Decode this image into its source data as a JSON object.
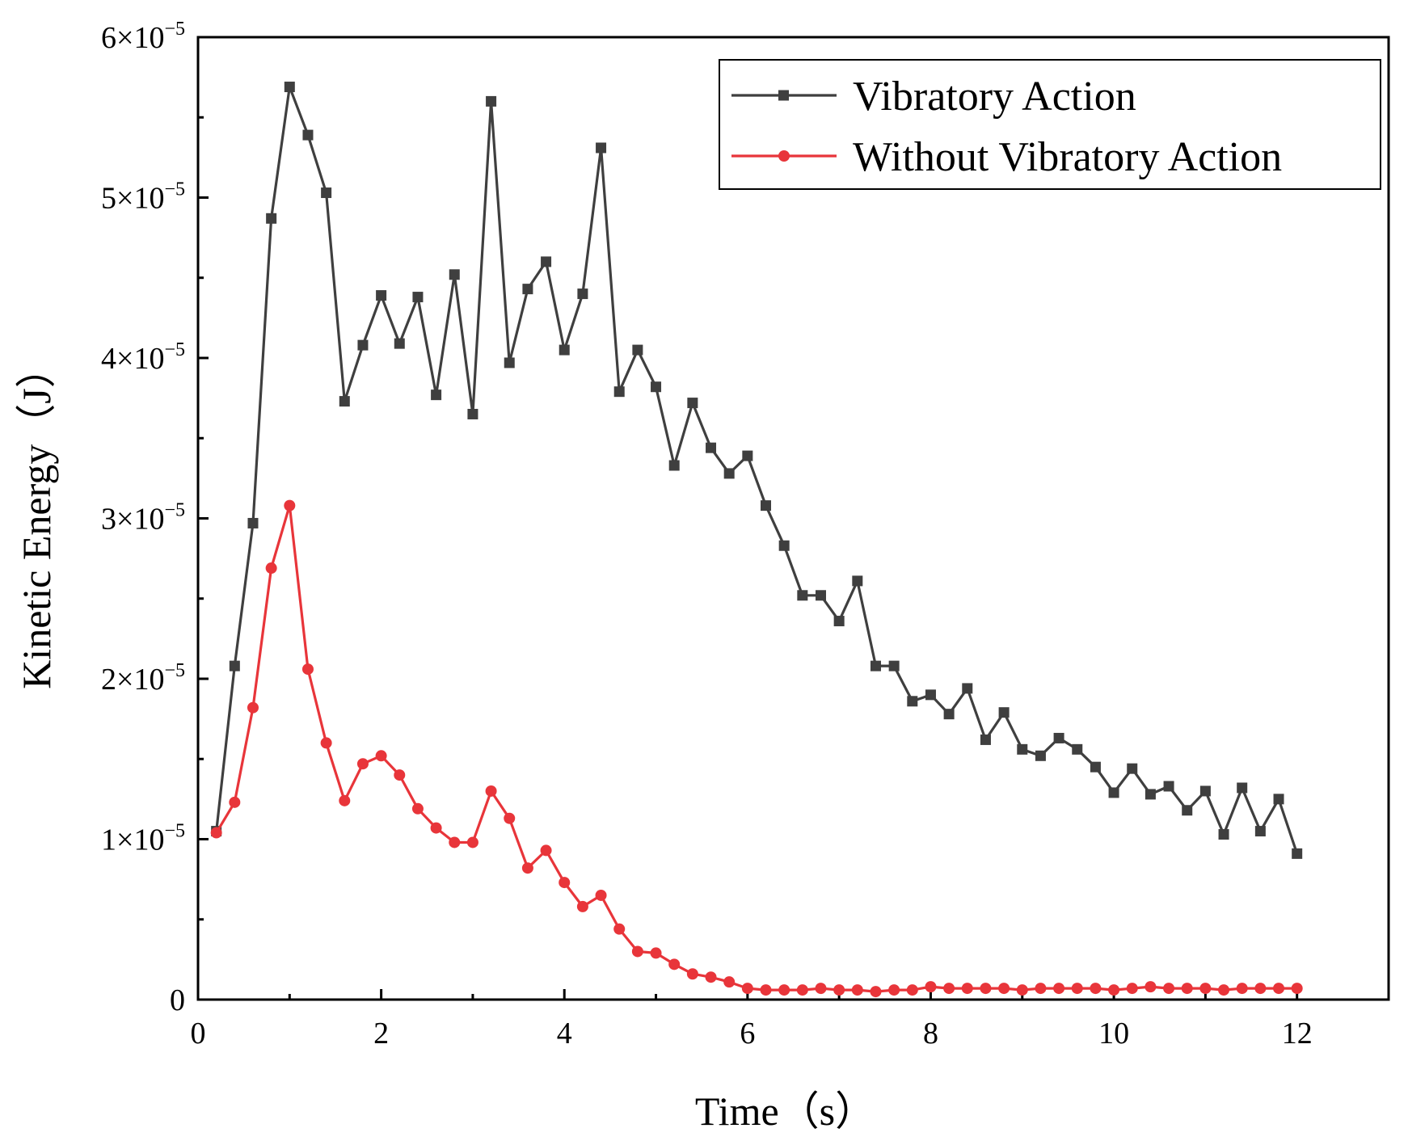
{
  "chart_data": {
    "type": "line",
    "title": "",
    "xlabel": "Time（s）",
    "ylabel": "Kinetic Energy（J）",
    "xlim": [
      0,
      13
    ],
    "ylim": [
      0,
      6e-05
    ],
    "xticks": [
      0,
      2,
      4,
      6,
      8,
      10,
      12
    ],
    "xtick_labels": [
      "0",
      "2",
      "4",
      "6",
      "8",
      "10",
      "12"
    ],
    "yticks": [
      0,
      1e-05,
      2e-05,
      3e-05,
      4e-05,
      5e-05,
      6e-05
    ],
    "ytick_labels": [
      {
        "mant": "0",
        "exp": ""
      },
      {
        "mant": "1×10",
        "exp": "−5"
      },
      {
        "mant": "2×10",
        "exp": "−5"
      },
      {
        "mant": "3×10",
        "exp": "−5"
      },
      {
        "mant": "4×10",
        "exp": "−5"
      },
      {
        "mant": "5×10",
        "exp": "−5"
      },
      {
        "mant": "6×10",
        "exp": "−5"
      }
    ],
    "legend_position": "top-right",
    "grid": false,
    "x": [
      0.2,
      0.4,
      0.6,
      0.8,
      1.0,
      1.2,
      1.4,
      1.6,
      1.8,
      2.0,
      2.2,
      2.4,
      2.6,
      2.8,
      3.0,
      3.2,
      3.4,
      3.6,
      3.8,
      4.0,
      4.2,
      4.4,
      4.6,
      4.8,
      5.0,
      5.2,
      5.4,
      5.6,
      5.8,
      6.0,
      6.2,
      6.4,
      6.6,
      6.8,
      7.0,
      7.2,
      7.4,
      7.6,
      7.8,
      8.0,
      8.2,
      8.4,
      8.6,
      8.8,
      9.0,
      9.2,
      9.4,
      9.6,
      9.8,
      10.0,
      10.2,
      10.4,
      10.6,
      10.8,
      11.0,
      11.2,
      11.4,
      11.6,
      11.8,
      12.0
    ],
    "series": [
      {
        "name": "Vibratory Action",
        "color": "#3f3f3f",
        "marker": "square",
        "values": [
          1.05e-05,
          2.08e-05,
          2.97e-05,
          4.87e-05,
          5.69e-05,
          5.39e-05,
          5.03e-05,
          3.73e-05,
          4.08e-05,
          4.39e-05,
          4.09e-05,
          4.38e-05,
          3.77e-05,
          4.52e-05,
          3.65e-05,
          5.6e-05,
          3.97e-05,
          4.43e-05,
          4.6e-05,
          4.05e-05,
          4.4e-05,
          5.31e-05,
          3.79e-05,
          4.05e-05,
          3.82e-05,
          3.33e-05,
          3.72e-05,
          3.44e-05,
          3.28e-05,
          3.39e-05,
          3.08e-05,
          2.83e-05,
          2.52e-05,
          2.52e-05,
          2.36e-05,
          2.61e-05,
          2.08e-05,
          2.08e-05,
          1.86e-05,
          1.9e-05,
          1.78e-05,
          1.94e-05,
          1.62e-05,
          1.79e-05,
          1.56e-05,
          1.52e-05,
          1.63e-05,
          1.56e-05,
          1.45e-05,
          1.29e-05,
          1.44e-05,
          1.28e-05,
          1.33e-05,
          1.18e-05,
          1.3e-05,
          1.03e-05,
          1.32e-05,
          1.05e-05,
          1.25e-05,
          9.1e-06
        ]
      },
      {
        "name": "Without Vibratory Action",
        "color": "#e8353a",
        "marker": "circle",
        "values": [
          1.04e-05,
          1.23e-05,
          1.82e-05,
          2.69e-05,
          3.08e-05,
          2.06e-05,
          1.6e-05,
          1.24e-05,
          1.47e-05,
          1.52e-05,
          1.4e-05,
          1.19e-05,
          1.07e-05,
          9.8e-06,
          9.8e-06,
          1.3e-05,
          1.13e-05,
          8.2e-06,
          9.3e-06,
          7.3e-06,
          5.8e-06,
          6.5e-06,
          4.4e-06,
          3e-06,
          2.9e-06,
          2.2e-06,
          1.6e-06,
          1.4e-06,
          1.1e-06,
          7e-07,
          6e-07,
          6e-07,
          6e-07,
          7e-07,
          6e-07,
          6e-07,
          5e-07,
          6e-07,
          6e-07,
          8e-07,
          7e-07,
          7e-07,
          7e-07,
          7e-07,
          6e-07,
          7e-07,
          7e-07,
          7e-07,
          7e-07,
          6e-07,
          7e-07,
          8e-07,
          7e-07,
          7e-07,
          7e-07,
          6e-07,
          7e-07,
          7e-07,
          7e-07,
          7e-07
        ]
      }
    ]
  }
}
